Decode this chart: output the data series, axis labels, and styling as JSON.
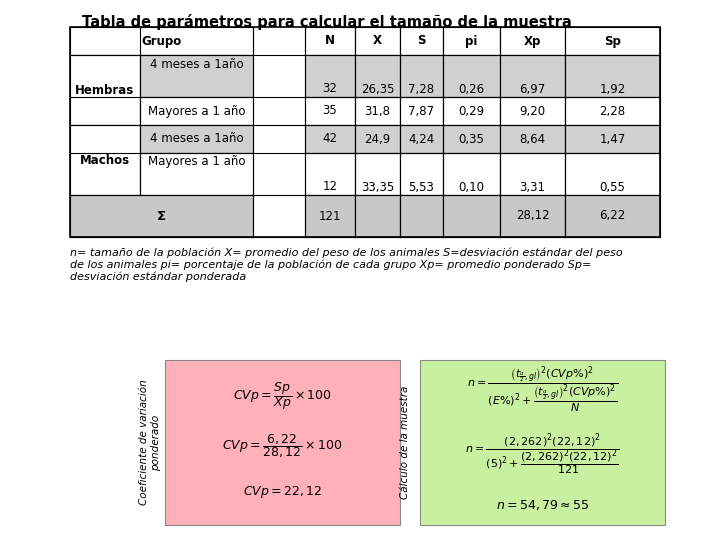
{
  "title": "Tabla de parámetros para calcular el tamaño de la muestra",
  "title_fontsize": 10.5,
  "bg_color": "#ffffff",
  "header_bg": "#e8e8e8",
  "dark_bg": "#d0d0d0",
  "light_bg": "#ffffff",
  "sigma_bg": "#c8c8c8",
  "cv_box_color": "#ffb0b8",
  "calc_box_color": "#c8f0a0",
  "table_font": 8.5,
  "note_text": "n= tamaño de la población X= promedio del peso de los animales S=desviación estándar del peso\nde los animales pi= porcentaje de la población de cada grupo Xp= promedio ponderado Sp=\ndesviación estándar ponderada",
  "cv_label": "Coeficiente de variación\nponderado",
  "calc_label": "Cálculo de la muestra"
}
